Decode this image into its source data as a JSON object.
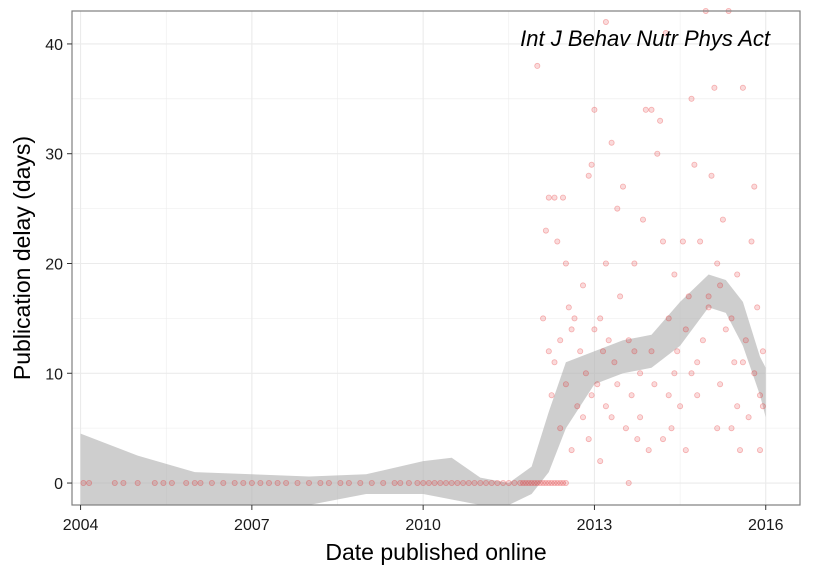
{
  "chart_data": {
    "type": "scatter",
    "title": "",
    "annotation": "Int J Behav Nutr Phys Act",
    "xlabel": "Date published online",
    "ylabel": "Publication delay (days)",
    "xlim": [
      2003.85,
      2016.6
    ],
    "ylim": [
      -2,
      43
    ],
    "x_ticks": [
      2004,
      2007,
      2010,
      2013,
      2016
    ],
    "y_ticks": [
      0,
      10,
      20,
      30,
      40
    ],
    "grid": true,
    "colors": {
      "points": "#e31a1c",
      "ribbon": "#b3b3b3",
      "grid": "#ebebeb",
      "border": "#7f7f7f"
    },
    "zero_delay_points": {
      "y": 0,
      "x": [
        2004.05,
        2004.15,
        2004.6,
        2004.75,
        2005.0,
        2005.3,
        2005.45,
        2005.6,
        2005.85,
        2006.0,
        2006.1,
        2006.3,
        2006.5,
        2006.7,
        2006.85,
        2007.0,
        2007.15,
        2007.3,
        2007.45,
        2007.6,
        2007.8,
        2008.0,
        2008.2,
        2008.35,
        2008.55,
        2008.7,
        2008.9,
        2009.1,
        2009.3,
        2009.5,
        2009.6,
        2009.75,
        2009.9,
        2010.0,
        2010.1,
        2010.2,
        2010.3,
        2010.4,
        2010.5,
        2010.6,
        2010.7,
        2010.8,
        2010.9,
        2011.0,
        2011.1,
        2011.2,
        2011.3,
        2011.4,
        2011.5,
        2011.6,
        2011.7,
        2011.75,
        2011.8,
        2011.85,
        2011.9,
        2011.95,
        2012.0,
        2012.05,
        2012.1,
        2012.15,
        2012.2,
        2012.25,
        2012.3,
        2012.35,
        2012.4,
        2012.45,
        2012.5
      ]
    },
    "scatter_points": [
      {
        "x": 2012.0,
        "y": 38
      },
      {
        "x": 2012.1,
        "y": 15
      },
      {
        "x": 2012.15,
        "y": 23
      },
      {
        "x": 2012.2,
        "y": 26
      },
      {
        "x": 2012.3,
        "y": 26
      },
      {
        "x": 2012.35,
        "y": 22
      },
      {
        "x": 2012.45,
        "y": 26
      },
      {
        "x": 2012.5,
        "y": 20
      },
      {
        "x": 2012.2,
        "y": 12
      },
      {
        "x": 2012.3,
        "y": 11
      },
      {
        "x": 2012.4,
        "y": 13
      },
      {
        "x": 2012.55,
        "y": 16
      },
      {
        "x": 2012.6,
        "y": 14
      },
      {
        "x": 2012.25,
        "y": 8
      },
      {
        "x": 2012.5,
        "y": 9
      },
      {
        "x": 2012.4,
        "y": 5
      },
      {
        "x": 2012.6,
        "y": 3
      },
      {
        "x": 2012.65,
        "y": 15
      },
      {
        "x": 2012.7,
        "y": 7
      },
      {
        "x": 2012.75,
        "y": 12
      },
      {
        "x": 2012.8,
        "y": 6
      },
      {
        "x": 2012.85,
        "y": 10
      },
      {
        "x": 2012.9,
        "y": 4
      },
      {
        "x": 2012.95,
        "y": 8
      },
      {
        "x": 2013.0,
        "y": 14
      },
      {
        "x": 2012.9,
        "y": 28
      },
      {
        "x": 2012.95,
        "y": 29
      },
      {
        "x": 2013.0,
        "y": 34
      },
      {
        "x": 2013.05,
        "y": 9
      },
      {
        "x": 2013.1,
        "y": 2
      },
      {
        "x": 2013.15,
        "y": 12
      },
      {
        "x": 2013.2,
        "y": 7
      },
      {
        "x": 2013.25,
        "y": 13
      },
      {
        "x": 2013.3,
        "y": 6
      },
      {
        "x": 2013.35,
        "y": 11
      },
      {
        "x": 2013.2,
        "y": 42
      },
      {
        "x": 2013.3,
        "y": 31
      },
      {
        "x": 2013.4,
        "y": 25
      },
      {
        "x": 2013.45,
        "y": 17
      },
      {
        "x": 2013.5,
        "y": 27
      },
      {
        "x": 2013.55,
        "y": 5
      },
      {
        "x": 2013.6,
        "y": 0
      },
      {
        "x": 2013.65,
        "y": 8
      },
      {
        "x": 2013.7,
        "y": 12
      },
      {
        "x": 2013.75,
        "y": 4
      },
      {
        "x": 2013.8,
        "y": 10
      },
      {
        "x": 2013.85,
        "y": 24
      },
      {
        "x": 2013.9,
        "y": 34
      },
      {
        "x": 2013.95,
        "y": 3
      },
      {
        "x": 2014.0,
        "y": 34
      },
      {
        "x": 2014.05,
        "y": 9
      },
      {
        "x": 2014.1,
        "y": 30
      },
      {
        "x": 2014.15,
        "y": 33
      },
      {
        "x": 2014.2,
        "y": 22
      },
      {
        "x": 2014.25,
        "y": 41
      },
      {
        "x": 2014.3,
        "y": 15
      },
      {
        "x": 2014.35,
        "y": 5
      },
      {
        "x": 2014.4,
        "y": 19
      },
      {
        "x": 2014.45,
        "y": 12
      },
      {
        "x": 2014.5,
        "y": 7
      },
      {
        "x": 2014.55,
        "y": 22
      },
      {
        "x": 2014.6,
        "y": 3
      },
      {
        "x": 2014.65,
        "y": 17
      },
      {
        "x": 2014.7,
        "y": 35
      },
      {
        "x": 2014.75,
        "y": 29
      },
      {
        "x": 2014.8,
        "y": 8
      },
      {
        "x": 2014.85,
        "y": 22
      },
      {
        "x": 2014.9,
        "y": 13
      },
      {
        "x": 2014.95,
        "y": 43
      },
      {
        "x": 2015.0,
        "y": 16
      },
      {
        "x": 2015.05,
        "y": 28
      },
      {
        "x": 2015.1,
        "y": 36
      },
      {
        "x": 2015.15,
        "y": 20
      },
      {
        "x": 2015.2,
        "y": 9
      },
      {
        "x": 2015.25,
        "y": 24
      },
      {
        "x": 2015.3,
        "y": 14
      },
      {
        "x": 2015.35,
        "y": 43
      },
      {
        "x": 2015.4,
        "y": 5
      },
      {
        "x": 2015.45,
        "y": 11
      },
      {
        "x": 2015.5,
        "y": 19
      },
      {
        "x": 2015.55,
        "y": 3
      },
      {
        "x": 2015.6,
        "y": 36
      },
      {
        "x": 2015.65,
        "y": 13
      },
      {
        "x": 2015.7,
        "y": 6
      },
      {
        "x": 2015.75,
        "y": 22
      },
      {
        "x": 2015.8,
        "y": 27
      },
      {
        "x": 2015.85,
        "y": 16
      },
      {
        "x": 2015.9,
        "y": 8
      },
      {
        "x": 2015.95,
        "y": 12
      },
      {
        "x": 2015.95,
        "y": 7
      },
      {
        "x": 2015.9,
        "y": 3
      },
      {
        "x": 2013.1,
        "y": 15
      },
      {
        "x": 2013.4,
        "y": 9
      },
      {
        "x": 2013.6,
        "y": 13
      },
      {
        "x": 2013.8,
        "y": 6
      },
      {
        "x": 2014.0,
        "y": 12
      },
      {
        "x": 2014.2,
        "y": 4
      },
      {
        "x": 2014.4,
        "y": 10
      },
      {
        "x": 2014.6,
        "y": 14
      },
      {
        "x": 2014.8,
        "y": 11
      },
      {
        "x": 2015.0,
        "y": 17
      },
      {
        "x": 2015.2,
        "y": 18
      },
      {
        "x": 2015.4,
        "y": 15
      },
      {
        "x": 2015.6,
        "y": 11
      },
      {
        "x": 2015.8,
        "y": 10
      },
      {
        "x": 2012.8,
        "y": 18
      },
      {
        "x": 2013.2,
        "y": 20
      },
      {
        "x": 2013.7,
        "y": 20
      },
      {
        "x": 2014.3,
        "y": 8
      },
      {
        "x": 2014.7,
        "y": 10
      },
      {
        "x": 2015.15,
        "y": 5
      },
      {
        "x": 2015.5,
        "y": 7
      }
    ],
    "smooth_band": {
      "x": [
        2004.0,
        2005.0,
        2006.0,
        2007.0,
        2008.0,
        2009.0,
        2010.0,
        2010.5,
        2011.0,
        2011.5,
        2011.9,
        2012.2,
        2012.5,
        2013.0,
        2013.5,
        2014.0,
        2014.5,
        2015.0,
        2015.3,
        2015.6,
        2015.9,
        2016.0
      ],
      "lower": [
        -2.0,
        -2.0,
        -2.0,
        -2.0,
        -2.0,
        -1.0,
        -1.0,
        -1.5,
        -2.0,
        -2.0,
        -1.0,
        1.0,
        5.0,
        9.0,
        10.0,
        10.5,
        12.5,
        16.0,
        15.5,
        12.5,
        8.0,
        6.0
      ],
      "upper": [
        4.5,
        2.5,
        1.0,
        0.8,
        0.6,
        0.8,
        2.0,
        2.3,
        0.5,
        0.0,
        1.5,
        6.5,
        11.0,
        12.0,
        13.0,
        13.5,
        16.5,
        19.0,
        18.5,
        16.5,
        11.5,
        10.5
      ]
    }
  }
}
